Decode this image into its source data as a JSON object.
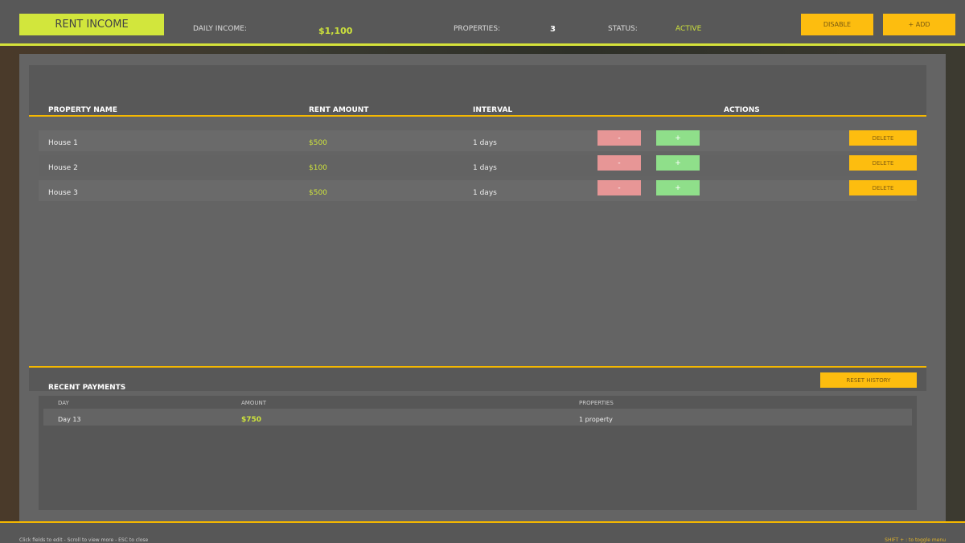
{
  "header": {
    "title": "RENT INCOME",
    "daily_income_label": "DAILY INCOME:",
    "daily_income": "$1,100",
    "properties_label": "PROPERTIES:",
    "properties": "3",
    "status_label": "STATUS:",
    "status": "ACTIVE",
    "disable_label": "DISABLE",
    "add_label": "+ ADD"
  },
  "table": {
    "columns": [
      "PROPERTY NAME",
      "RENT AMOUNT",
      "INTERVAL",
      "ACTIONS"
    ],
    "rows": [
      {
        "name": "House 1",
        "rent": "$500",
        "interval": "1 days",
        "minus": "-",
        "plus": "+",
        "delete": "DELETE"
      },
      {
        "name": "House 2",
        "rent": "$100",
        "interval": "1 days",
        "minus": "-",
        "plus": "+",
        "delete": "DELETE"
      },
      {
        "name": "House 3",
        "rent": "$500",
        "interval": "1 days",
        "minus": "-",
        "plus": "+",
        "delete": "DELETE"
      }
    ]
  },
  "payments": {
    "title": "RECENT PAYMENTS",
    "reset_label": "RESET HISTORY",
    "columns": [
      "DAY",
      "AMOUNT",
      "PROPERTIES"
    ],
    "rows": [
      {
        "day": "Day 13",
        "amount": "$750",
        "properties": "1 property"
      }
    ]
  },
  "footer": {
    "hint": "Click fields to edit - Scroll to view more - ESC to close",
    "toggle": "SHIFT + : to toggle menu"
  },
  "colors": {
    "accent_lime": "#d2e63c",
    "accent_orange": "#fdbd0f",
    "minus": "#e79696",
    "plus": "#8fdf8a"
  }
}
